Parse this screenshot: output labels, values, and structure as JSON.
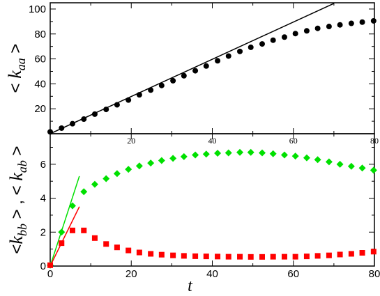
{
  "chart_data": [
    {
      "type": "scatter",
      "panel": "top",
      "title": "",
      "ylabel": {
        "open": "<",
        "k": "k",
        "sub": "aa",
        "close": ">"
      },
      "xlabel": "",
      "xlim": [
        0,
        80
      ],
      "ylim": [
        0,
        105
      ],
      "x_ticks": [
        0,
        20,
        40,
        60,
        80
      ],
      "x_tick_labels": [
        "",
        "20",
        "40",
        "60",
        "80"
      ],
      "y_ticks": [
        0,
        20,
        40,
        60,
        80,
        100
      ],
      "y_tick_labels": [
        "",
        "20",
        "40",
        "60",
        "80",
        "100"
      ],
      "grid": false,
      "series": [
        {
          "marker": "circle",
          "color": "#000000",
          "x": [
            0,
            2.8,
            5.5,
            8.3,
            11,
            13.8,
            16.5,
            19.3,
            22,
            24.8,
            27.5,
            30.3,
            33,
            35.8,
            38.5,
            41.3,
            44,
            46.8,
            49.5,
            52.3,
            55,
            57.8,
            60.5,
            63.3,
            66,
            68.8,
            71.5,
            74.3,
            77,
            79.8
          ],
          "y": [
            1.5,
            4.5,
            8.0,
            11.7,
            15.7,
            19.5,
            23.2,
            27.0,
            31.2,
            35.0,
            38.7,
            42.5,
            46.5,
            50.5,
            54.3,
            58.5,
            62.3,
            66.0,
            69.3,
            72.0,
            75.0,
            77.5,
            80.3,
            82.5,
            84.5,
            86.0,
            87.3,
            88.5,
            89.5,
            90.5
          ]
        },
        {
          "type": "line",
          "color": "#000000",
          "x": [
            0,
            70
          ],
          "y": [
            0,
            104.5
          ]
        }
      ]
    },
    {
      "type": "scatter",
      "panel": "bottom",
      "title": "",
      "ylabel": {
        "open": "<",
        "k1": "k",
        "sub1": "bb",
        "mid": "> , <",
        "k2": "k",
        "sub2": "ab",
        "close": ">"
      },
      "xlabel": "t",
      "xlim": [
        0,
        80
      ],
      "ylim": [
        0,
        7.8
      ],
      "x_ticks": [
        0,
        20,
        40,
        60,
        80
      ],
      "x_tick_labels": [
        "0",
        "20",
        "40",
        "60",
        "80"
      ],
      "y_ticks": [
        0,
        2,
        4,
        6
      ],
      "y_tick_labels": [
        "0",
        "2",
        "4",
        "6"
      ],
      "grid": false,
      "series": [
        {
          "marker": "diamond",
          "color": "#00e000",
          "x": [
            0,
            2.8,
            5.5,
            8.3,
            11,
            13.8,
            16.5,
            19.3,
            22,
            24.8,
            27.5,
            30.3,
            33,
            35.8,
            38.5,
            41.3,
            44,
            46.8,
            49.5,
            52.3,
            55,
            57.8,
            60.5,
            63.3,
            66,
            68.8,
            71.5,
            74.3,
            77,
            79.8
          ],
          "y": [
            0.05,
            2.0,
            3.55,
            4.38,
            4.82,
            5.15,
            5.45,
            5.7,
            5.9,
            6.07,
            6.22,
            6.35,
            6.45,
            6.55,
            6.6,
            6.65,
            6.67,
            6.7,
            6.7,
            6.67,
            6.62,
            6.55,
            6.48,
            6.38,
            6.27,
            6.14,
            6.0,
            5.88,
            5.78,
            5.65
          ]
        },
        {
          "marker": "square",
          "color": "#ff0000",
          "x": [
            0,
            2.8,
            5.5,
            8.3,
            11,
            13.8,
            16.5,
            19.3,
            22,
            24.8,
            27.5,
            30.3,
            33,
            35.8,
            38.5,
            41.3,
            44,
            46.8,
            49.5,
            52.3,
            55,
            57.8,
            60.5,
            63.3,
            66,
            68.8,
            71.5,
            74.3,
            77,
            79.8
          ],
          "y": [
            0.05,
            1.35,
            2.1,
            2.1,
            1.65,
            1.3,
            1.1,
            0.92,
            0.8,
            0.72,
            0.67,
            0.63,
            0.6,
            0.58,
            0.57,
            0.56,
            0.55,
            0.55,
            0.54,
            0.54,
            0.55,
            0.55,
            0.55,
            0.57,
            0.6,
            0.63,
            0.68,
            0.72,
            0.78,
            0.85
          ]
        },
        {
          "type": "line",
          "color": "#00e000",
          "x": [
            0,
            7.2
          ],
          "y": [
            0,
            5.3
          ]
        },
        {
          "type": "line",
          "color": "#ff0000",
          "x": [
            0,
            7.2
          ],
          "y": [
            0,
            3.5
          ]
        }
      ]
    }
  ]
}
